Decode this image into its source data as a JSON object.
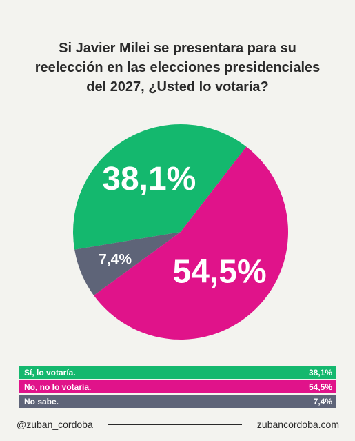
{
  "title_lines": [
    "Si Javier Milei se presentara para  su",
    "reelección en las elecciones presidenciales",
    "del 2027, ¿Usted lo votaría?"
  ],
  "chart_data": {
    "type": "pie",
    "slices": [
      {
        "label": "Sí, lo votaría.",
        "value": 38.1,
        "display": "38,1%",
        "color": "#14b86e"
      },
      {
        "label": "No, no lo votaría.",
        "value": 54.5,
        "display": "54,5%",
        "color": "#e0138a"
      },
      {
        "label": "No sabe.",
        "value": 7.4,
        "display": "7,4%",
        "color": "#5e6478"
      }
    ]
  },
  "footer": {
    "handle": "@zuban_cordoba",
    "website": "zubancordoba.com"
  }
}
